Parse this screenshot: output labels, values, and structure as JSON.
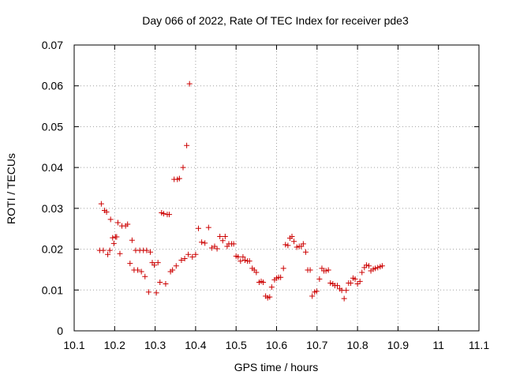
{
  "chart_data": {
    "type": "scatter",
    "title": "Day 066 of 2022, Rate Of TEC Index for receiver pde3",
    "xlabel": "GPS time / hours",
    "ylabel": "ROTI / TECUs",
    "xlim": [
      10.1,
      11.1
    ],
    "ylim": [
      0,
      0.07
    ],
    "xticks": [
      10.1,
      10.2,
      10.3,
      10.4,
      10.5,
      10.6,
      10.7,
      10.8,
      10.9,
      11.0,
      11.1
    ],
    "xtick_labels": [
      "10.1",
      "10.2",
      "10.3",
      "10.4",
      "10.5",
      "10.6",
      "10.7",
      "10.8",
      "10.9",
      "11",
      "11.1"
    ],
    "yticks": [
      0,
      0.01,
      0.02,
      0.03,
      0.04,
      0.05,
      0.06,
      0.07
    ],
    "ytick_labels": [
      "0",
      "0.01",
      "0.02",
      "0.03",
      "0.04",
      "0.05",
      "0.06",
      "0.07"
    ],
    "grid": true,
    "marker": "plus",
    "marker_color": "#cc0000",
    "series": [
      {
        "name": "series-a",
        "points": [
          [
            10.163,
            0.0197
          ],
          [
            10.167,
            0.0311
          ],
          [
            10.172,
            0.0197
          ],
          [
            10.175,
            0.0295
          ],
          [
            10.18,
            0.0291
          ],
          [
            10.183,
            0.0187
          ],
          [
            10.188,
            0.0197
          ],
          [
            10.19,
            0.0273
          ],
          [
            10.195,
            0.0228
          ],
          [
            10.198,
            0.0214
          ],
          [
            10.202,
            0.023
          ],
          [
            10.205,
            0.023
          ],
          [
            10.208,
            0.0265
          ],
          [
            10.213,
            0.0189
          ],
          [
            10.218,
            0.0257
          ],
          [
            10.227,
            0.0257
          ],
          [
            10.232,
            0.0261
          ],
          [
            10.238,
            0.0165
          ],
          [
            10.243,
            0.0222
          ],
          [
            10.248,
            0.0149
          ],
          [
            10.252,
            0.0197
          ],
          [
            10.257,
            0.0149
          ],
          [
            10.262,
            0.0197
          ],
          [
            10.266,
            0.0145
          ],
          [
            10.271,
            0.0197
          ],
          [
            10.275,
            0.0133
          ],
          [
            10.279,
            0.0197
          ],
          [
            10.284,
            0.0095
          ],
          [
            10.288,
            0.0193
          ],
          [
            10.293,
            0.0167
          ],
          [
            10.298,
            0.0161
          ],
          [
            10.303,
            0.0093
          ],
          [
            10.307,
            0.0167
          ],
          [
            10.312,
            0.0119
          ],
          [
            10.316,
            0.0289
          ],
          [
            10.321,
            0.0287
          ],
          [
            10.326,
            0.0115
          ],
          [
            10.33,
            0.0285
          ],
          [
            10.335,
            0.0285
          ],
          [
            10.338,
            0.0145
          ],
          [
            10.343,
            0.0149
          ],
          [
            10.347,
            0.0371
          ],
          [
            10.352,
            0.0159
          ],
          [
            10.355,
            0.0371
          ],
          [
            10.36,
            0.0373
          ],
          [
            10.365,
            0.0173
          ],
          [
            10.369,
            0.04
          ],
          [
            10.373,
            0.0177
          ],
          [
            10.378,
            0.0454
          ],
          [
            10.382,
            0.0187
          ],
          [
            10.385,
            0.0605
          ],
          [
            10.392,
            0.0181
          ],
          [
            10.4,
            0.0187
          ],
          [
            10.407,
            0.0251
          ],
          [
            10.415,
            0.0217
          ],
          [
            10.423,
            0.0215
          ],
          [
            10.432,
            0.0253
          ],
          [
            10.44,
            0.0203
          ],
          [
            10.447,
            0.0207
          ],
          [
            10.453,
            0.0201
          ],
          [
            10.46,
            0.0231
          ],
          [
            10.467,
            0.0221
          ],
          [
            10.473,
            0.0231
          ],
          [
            10.478,
            0.0207
          ],
          [
            10.482,
            0.0213
          ],
          [
            10.489,
            0.0213
          ],
          [
            10.494,
            0.0213
          ],
          [
            10.5,
            0.0183
          ],
          [
            10.505,
            0.0181
          ],
          [
            10.511,
            0.0171
          ],
          [
            10.517,
            0.0181
          ],
          [
            10.522,
            0.0173
          ],
          [
            10.528,
            0.0171
          ],
          [
            10.533,
            0.0171
          ],
          [
            10.54,
            0.0153
          ],
          [
            10.545,
            0.0149
          ],
          [
            10.55,
            0.0143
          ],
          [
            10.557,
            0.0119
          ],
          [
            10.562,
            0.0121
          ],
          [
            10.567,
            0.0119
          ],
          [
            10.573,
            0.0085
          ],
          [
            10.578,
            0.0081
          ],
          [
            10.583,
            0.0083
          ],
          [
            10.588,
            0.0107
          ],
          [
            10.595,
            0.0125
          ],
          [
            10.6,
            0.0129
          ],
          [
            10.605,
            0.0131
          ],
          [
            10.61,
            0.0131
          ],
          [
            10.617,
            0.0153
          ],
          [
            10.622,
            0.0211
          ],
          [
            10.628,
            0.0209
          ],
          [
            10.633,
            0.0227
          ],
          [
            10.638,
            0.0231
          ],
          [
            10.643,
            0.0219
          ],
          [
            10.65,
            0.0205
          ],
          [
            10.656,
            0.0207
          ],
          [
            10.661,
            0.0207
          ],
          [
            10.666,
            0.0213
          ],
          [
            10.672,
            0.0193
          ],
          [
            10.677,
            0.0149
          ],
          [
            10.683,
            0.0149
          ],
          [
            10.688,
            0.0085
          ],
          [
            10.694,
            0.0095
          ],
          [
            10.699,
            0.0097
          ],
          [
            10.706,
            0.0127
          ],
          [
            10.712,
            0.0153
          ],
          [
            10.717,
            0.0147
          ],
          [
            10.722,
            0.0147
          ],
          [
            10.728,
            0.0149
          ],
          [
            10.733,
            0.0117
          ],
          [
            10.739,
            0.0115
          ],
          [
            10.744,
            0.0111
          ],
          [
            10.75,
            0.0111
          ],
          [
            10.756,
            0.0103
          ],
          [
            10.761,
            0.0099
          ],
          [
            10.767,
            0.0079
          ],
          [
            10.772,
            0.0099
          ],
          [
            10.778,
            0.0117
          ],
          [
            10.783,
            0.0117
          ],
          [
            10.789,
            0.0129
          ],
          [
            10.794,
            0.0127
          ],
          [
            10.8,
            0.0115
          ],
          [
            10.806,
            0.0121
          ],
          [
            10.811,
            0.0143
          ],
          [
            10.817,
            0.0155
          ],
          [
            10.822,
            0.0161
          ],
          [
            10.828,
            0.0159
          ],
          [
            10.833,
            0.0147
          ],
          [
            10.839,
            0.0151
          ],
          [
            10.844,
            0.0153
          ],
          [
            10.85,
            0.0155
          ],
          [
            10.856,
            0.0157
          ],
          [
            10.861,
            0.0159
          ]
        ]
      }
    ]
  }
}
